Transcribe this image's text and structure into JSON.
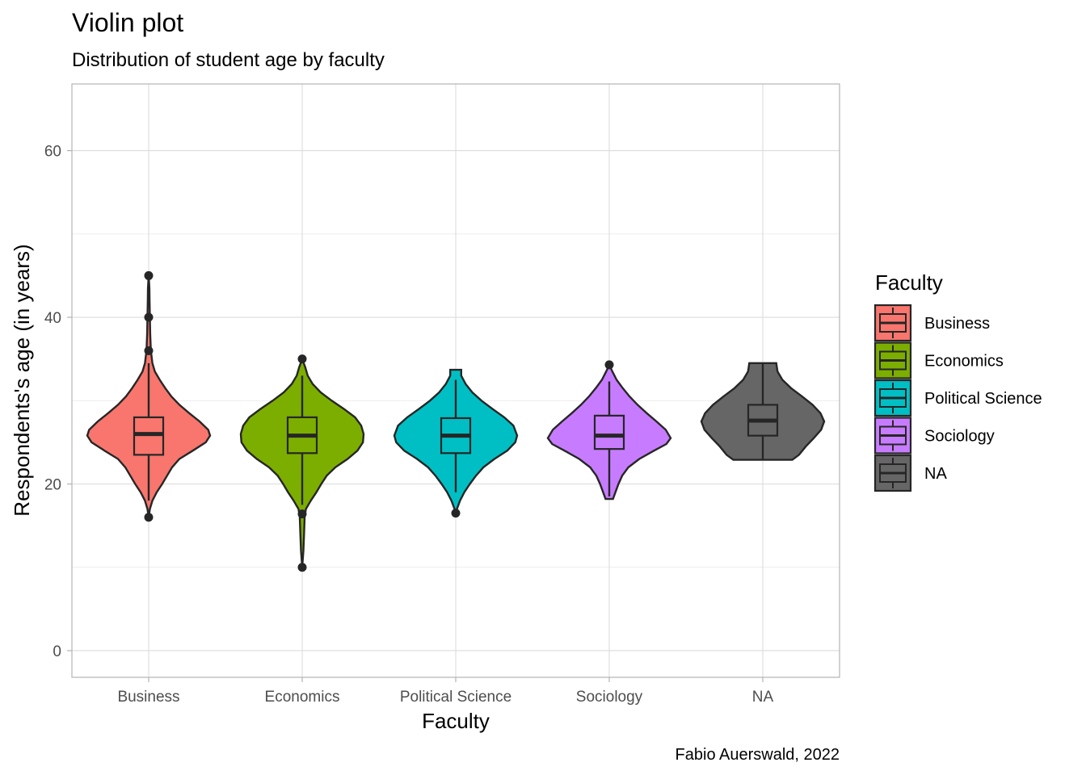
{
  "chart_data": {
    "type": "violin",
    "title": "Violin plot",
    "subtitle": "Distribution of student age by faculty",
    "xlabel": "Faculty",
    "ylabel": "Respondents's age (in years)",
    "caption": "Fabio Auerswald, 2022",
    "ylim": [
      -3.2,
      68
    ],
    "y_major_ticks": [
      0,
      20,
      40,
      60
    ],
    "y_minor_ticks": [
      10,
      30,
      50
    ],
    "grid": true,
    "legend": {
      "title": "Faculty",
      "position": "right"
    },
    "categories": [
      "Business",
      "Economics",
      "Political Science",
      "Sociology",
      "NA"
    ],
    "series": [
      {
        "name": "Business",
        "color": "#F8766D",
        "box": {
          "q1": 23.5,
          "median": 26.0,
          "q3": 28.0,
          "whisker_low": 18.0,
          "whisker_high": 34.5
        },
        "outliers": [
          16,
          36,
          40,
          45
        ],
        "density": [
          [
            16,
            0.0
          ],
          [
            17,
            0.02
          ],
          [
            18,
            0.06
          ],
          [
            19,
            0.13
          ],
          [
            20,
            0.22
          ],
          [
            21,
            0.3
          ],
          [
            22,
            0.38
          ],
          [
            23,
            0.5
          ],
          [
            24,
            0.72
          ],
          [
            25,
            0.93
          ],
          [
            25.8,
            1.0
          ],
          [
            26.5,
            0.97
          ],
          [
            27.5,
            0.83
          ],
          [
            28.5,
            0.66
          ],
          [
            29.5,
            0.5
          ],
          [
            30.5,
            0.37
          ],
          [
            31.5,
            0.27
          ],
          [
            32.5,
            0.18
          ],
          [
            33.5,
            0.1
          ],
          [
            34.5,
            0.06
          ],
          [
            36,
            0.035
          ],
          [
            38,
            0.025
          ],
          [
            40,
            0.02
          ],
          [
            42,
            0.015
          ],
          [
            43.5,
            0.012
          ],
          [
            45,
            0.0
          ]
        ]
      },
      {
        "name": "Economics",
        "color": "#7CAE00",
        "box": {
          "q1": 23.7,
          "median": 25.8,
          "q3": 28.0,
          "whisker_low": 17.5,
          "whisker_high": 33.0
        },
        "outliers": [
          10,
          16.4,
          35
        ],
        "density": [
          [
            10,
            0.0
          ],
          [
            12,
            0.02
          ],
          [
            14,
            0.03
          ],
          [
            16,
            0.04
          ],
          [
            17,
            0.06
          ],
          [
            18,
            0.14
          ],
          [
            19,
            0.23
          ],
          [
            20,
            0.31
          ],
          [
            21,
            0.4
          ],
          [
            22,
            0.54
          ],
          [
            23,
            0.74
          ],
          [
            24,
            0.9
          ],
          [
            25,
            0.99
          ],
          [
            26,
            1.0
          ],
          [
            27,
            0.96
          ],
          [
            28,
            0.86
          ],
          [
            29,
            0.68
          ],
          [
            30,
            0.48
          ],
          [
            31,
            0.3
          ],
          [
            32,
            0.17
          ],
          [
            33,
            0.09
          ],
          [
            34,
            0.05
          ],
          [
            35,
            0.0
          ]
        ]
      },
      {
        "name": "Political Science",
        "color": "#00BFC4",
        "box": {
          "q1": 23.7,
          "median": 25.8,
          "q3": 27.9,
          "whisker_low": 19.0,
          "whisker_high": 32.5
        },
        "outliers": [
          16.5
        ],
        "density": [
          [
            16.5,
            0.0
          ],
          [
            17,
            0.02
          ],
          [
            18,
            0.07
          ],
          [
            19,
            0.14
          ],
          [
            20,
            0.23
          ],
          [
            21,
            0.33
          ],
          [
            22,
            0.45
          ],
          [
            23,
            0.63
          ],
          [
            24,
            0.84
          ],
          [
            25,
            0.97
          ],
          [
            25.8,
            1.0
          ],
          [
            27,
            0.94
          ],
          [
            28,
            0.79
          ],
          [
            29,
            0.6
          ],
          [
            30,
            0.42
          ],
          [
            31,
            0.27
          ],
          [
            32,
            0.16
          ],
          [
            33,
            0.09
          ],
          [
            33.7,
            0.09
          ]
        ]
      },
      {
        "name": "Sociology",
        "color": "#C77CFF",
        "box": {
          "q1": 24.2,
          "median": 25.8,
          "q3": 28.2,
          "whisker_low": 18.5,
          "whisker_high": 32.3
        },
        "outliers": [
          34.3
        ],
        "density": [
          [
            18.2,
            0.06
          ],
          [
            19,
            0.1
          ],
          [
            20,
            0.15
          ],
          [
            21,
            0.21
          ],
          [
            22,
            0.31
          ],
          [
            23,
            0.49
          ],
          [
            24,
            0.73
          ],
          [
            24.8,
            0.93
          ],
          [
            25.5,
            1.0
          ],
          [
            26.5,
            0.92
          ],
          [
            27.5,
            0.77
          ],
          [
            28.5,
            0.61
          ],
          [
            29.5,
            0.46
          ],
          [
            30.5,
            0.33
          ],
          [
            31.5,
            0.22
          ],
          [
            32.5,
            0.12
          ],
          [
            33.5,
            0.05
          ],
          [
            34.3,
            0.0
          ]
        ]
      },
      {
        "name": "NA",
        "color": "#666666",
        "box": {
          "q1": 25.8,
          "median": 27.6,
          "q3": 29.5,
          "whisker_low": 22.9,
          "whisker_high": 34.5
        },
        "outliers": [],
        "density": [
          [
            22.9,
            0.48
          ],
          [
            23.5,
            0.59
          ],
          [
            24.5,
            0.7
          ],
          [
            25.5,
            0.83
          ],
          [
            26.5,
            0.95
          ],
          [
            27.5,
            1.0
          ],
          [
            28.5,
            0.94
          ],
          [
            29.5,
            0.81
          ],
          [
            30.5,
            0.64
          ],
          [
            31.5,
            0.46
          ],
          [
            32.5,
            0.32
          ],
          [
            33.5,
            0.24
          ],
          [
            34.5,
            0.22
          ]
        ]
      }
    ],
    "violin_outline_color": "#262626"
  }
}
